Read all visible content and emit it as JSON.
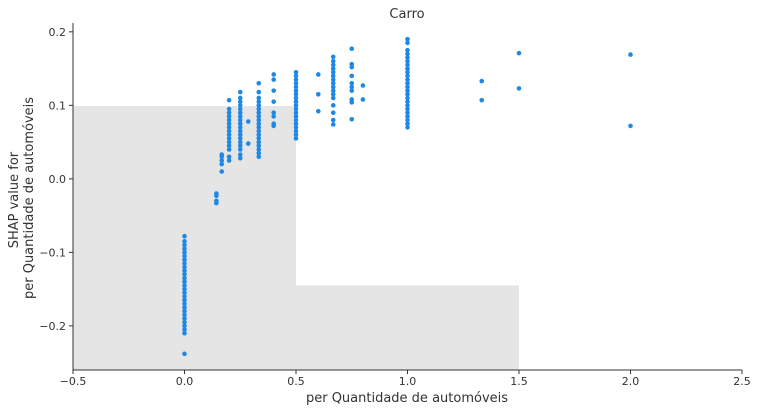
{
  "chart_data": {
    "type": "scatter",
    "title": "Carro",
    "xlabel": "per Quantidade de automóveis",
    "ylabel_lines": [
      "SHAP value for",
      "per Quantidade de automóveis"
    ],
    "xlim": [
      -0.5,
      2.5
    ],
    "ylim": [
      -0.26,
      0.212
    ],
    "xticks": [
      -0.5,
      0.0,
      0.5,
      1.0,
      1.5,
      2.0,
      2.5
    ],
    "xtick_labels": [
      "−0.5",
      "0.0",
      "0.5",
      "1.0",
      "1.5",
      "2.0",
      "2.5"
    ],
    "yticks": [
      -0.2,
      -0.1,
      0.0,
      0.1,
      0.2
    ],
    "ytick_labels": [
      "−0.2",
      "−0.1",
      "0.0",
      "0.1",
      "0.2"
    ],
    "grid": false,
    "point_color": "#1E88E5",
    "histogram_color": "#e5e5e5",
    "histogram_bins": [
      {
        "x0": -0.5,
        "x1": 0.5,
        "top": 0.099
      },
      {
        "x0": 0.5,
        "x1": 1.5,
        "top": -0.145
      }
    ],
    "point_columns": [
      {
        "x": 0.0,
        "y": [
          -0.078,
          -0.085,
          -0.09,
          -0.095,
          -0.1,
          -0.105,
          -0.11,
          -0.115,
          -0.12,
          -0.125,
          -0.13,
          -0.135,
          -0.14,
          -0.145,
          -0.15,
          -0.155,
          -0.16,
          -0.165,
          -0.17,
          -0.175,
          -0.18,
          -0.185,
          -0.19,
          -0.195,
          -0.2,
          -0.205,
          -0.21,
          -0.238
        ]
      },
      {
        "x": 0.143,
        "y": [
          -0.02,
          -0.023,
          -0.03,
          -0.033
        ]
      },
      {
        "x": 0.167,
        "y": [
          0.01,
          0.02,
          0.025,
          0.03,
          0.033
        ]
      },
      {
        "x": 0.2,
        "y": [
          0.025,
          0.03,
          0.04,
          0.045,
          0.05,
          0.055,
          0.06,
          0.065,
          0.07,
          0.075,
          0.08,
          0.085,
          0.09,
          0.095,
          0.107
        ]
      },
      {
        "x": 0.25,
        "y": [
          0.028,
          0.033,
          0.04,
          0.045,
          0.05,
          0.055,
          0.06,
          0.065,
          0.07,
          0.075,
          0.08,
          0.085,
          0.09,
          0.095,
          0.1,
          0.105,
          0.11,
          0.118
        ]
      },
      {
        "x": 0.286,
        "y": [
          0.048,
          0.078
        ]
      },
      {
        "x": 0.333,
        "y": [
          0.03,
          0.035,
          0.04,
          0.045,
          0.05,
          0.055,
          0.06,
          0.065,
          0.07,
          0.075,
          0.08,
          0.085,
          0.09,
          0.095,
          0.1,
          0.105,
          0.11,
          0.118,
          0.13
        ]
      },
      {
        "x": 0.4,
        "y": [
          0.072,
          0.075,
          0.085,
          0.09,
          0.105,
          0.12,
          0.135,
          0.142
        ]
      },
      {
        "x": 0.5,
        "y": [
          0.055,
          0.06,
          0.065,
          0.07,
          0.075,
          0.08,
          0.085,
          0.09,
          0.095,
          0.1,
          0.105,
          0.11,
          0.115,
          0.12,
          0.125,
          0.13,
          0.135,
          0.14,
          0.145
        ]
      },
      {
        "x": 0.6,
        "y": [
          0.092,
          0.115,
          0.142
        ]
      },
      {
        "x": 0.667,
        "y": [
          0.074,
          0.08,
          0.09,
          0.1,
          0.11,
          0.115,
          0.12,
          0.125,
          0.13,
          0.135,
          0.14,
          0.145,
          0.15,
          0.155,
          0.16,
          0.166
        ]
      },
      {
        "x": 0.75,
        "y": [
          0.081,
          0.104,
          0.108,
          0.12,
          0.125,
          0.13,
          0.14,
          0.152,
          0.156,
          0.177
        ]
      },
      {
        "x": 0.8,
        "y": [
          0.108,
          0.127
        ]
      },
      {
        "x": 1.0,
        "y": [
          0.07,
          0.075,
          0.08,
          0.085,
          0.09,
          0.095,
          0.1,
          0.105,
          0.11,
          0.115,
          0.12,
          0.125,
          0.13,
          0.135,
          0.14,
          0.145,
          0.15,
          0.155,
          0.16,
          0.165,
          0.17,
          0.175,
          0.185,
          0.19
        ]
      },
      {
        "x": 1.333,
        "y": [
          0.107,
          0.133
        ]
      },
      {
        "x": 1.5,
        "y": [
          0.123,
          0.171
        ]
      },
      {
        "x": 2.0,
        "y": [
          0.072,
          0.169
        ]
      }
    ]
  }
}
